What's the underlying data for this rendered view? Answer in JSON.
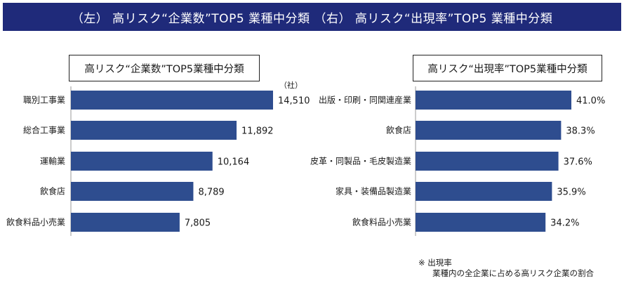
{
  "banner": {
    "title": "（左） 高リスク“企業数”TOP5 業種中分類 （右） 高リスク“出現率”TOP5 業種中分類"
  },
  "chart_data": [
    {
      "type": "bar",
      "orientation": "horizontal",
      "title": "高リスク“企業数”TOP5業種中分類",
      "unit": "（社）",
      "categories": [
        "職別工事業",
        "総合工事業",
        "運輸業",
        "飲食店",
        "飲食料品小売業"
      ],
      "values": [
        14510,
        11892,
        10164,
        8789,
        7805
      ],
      "value_labels": [
        "14,510",
        "11,892",
        "10,164",
        "8,789",
        "7,805"
      ],
      "xlim": [
        0,
        14510
      ],
      "bar_color": "#2e4d8f"
    },
    {
      "type": "bar",
      "orientation": "horizontal",
      "title": "高リスク“出現率”TOP5業種中分類",
      "categories": [
        "出版・印刷・同関連産業",
        "飲食店",
        "皮革・同製品・毛皮製造業",
        "家具・装備品製造業",
        "飲食料品小売業"
      ],
      "values": [
        41.0,
        38.3,
        37.6,
        35.9,
        34.2
      ],
      "value_labels": [
        "41.0%",
        "38.3%",
        "37.6%",
        "35.9%",
        "34.2%"
      ],
      "xlim": [
        0,
        41.0
      ],
      "bar_color": "#2e4d8f"
    }
  ],
  "note": {
    "line1": "※ 出現率",
    "line2": "業種内の全企業に占める高リスク企業の割合"
  }
}
